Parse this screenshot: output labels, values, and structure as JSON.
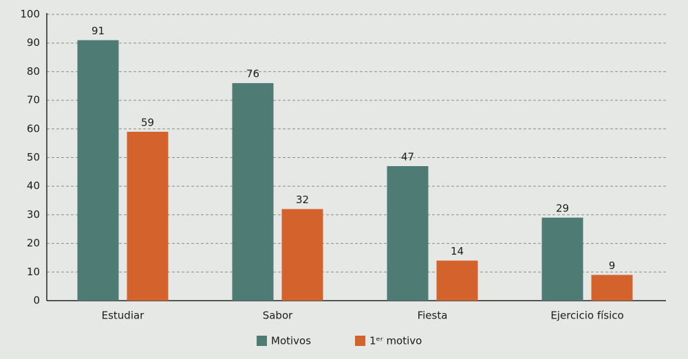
{
  "chart_data": {
    "type": "bar",
    "categories": [
      "Estudiar",
      "Sabor",
      "Fiesta",
      "Ejercicio físico"
    ],
    "series": [
      {
        "name": "Motivos",
        "color": "#4e7b73",
        "values": [
          91,
          76,
          47,
          29
        ]
      },
      {
        "name": "1ᵉʳ motivo",
        "color": "#d4622d",
        "values": [
          59,
          32,
          14,
          9
        ]
      }
    ],
    "ylim": [
      0,
      100
    ],
    "yticks": [
      0,
      10,
      20,
      30,
      40,
      50,
      60,
      70,
      80,
      90,
      100
    ],
    "grid": true,
    "legend": "bottom"
  }
}
